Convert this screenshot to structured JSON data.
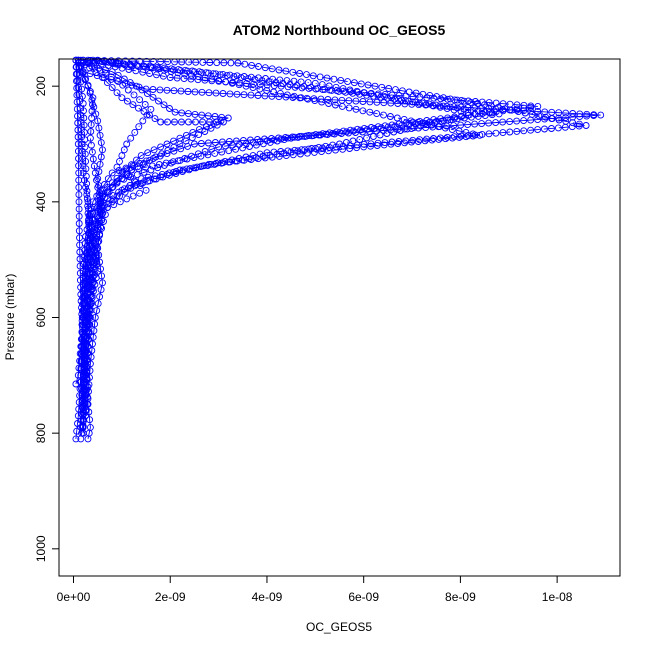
{
  "chart_data": {
    "type": "line",
    "title": "ATOM2 Northbound OC_GEOS5",
    "xlabel": "OC_GEOS5",
    "ylabel": "Pressure (mbar)",
    "xlim": [
      -3e-10,
      1.13e-08
    ],
    "ylim": [
      1047,
      153
    ],
    "y_reversed": true,
    "grid": false,
    "legend": "none",
    "x_ticks": [
      {
        "value": 0,
        "label": "0e+00"
      },
      {
        "value": 2e-09,
        "label": "2e-09"
      },
      {
        "value": 4e-09,
        "label": "4e-09"
      },
      {
        "value": 6e-09,
        "label": "6e-09"
      },
      {
        "value": 8e-09,
        "label": "8e-09"
      },
      {
        "value": 1e-08,
        "label": "1e-08"
      }
    ],
    "y_ticks": [
      {
        "value": 200,
        "label": "200"
      },
      {
        "value": 400,
        "label": "400"
      },
      {
        "value": 600,
        "label": "600"
      },
      {
        "value": 800,
        "label": "800"
      },
      {
        "value": 1000,
        "label": "1000"
      }
    ],
    "color": "#0000ff",
    "marker": "open-circle",
    "series": [
      {
        "dash": "solid",
        "points": [
          [
            1e-10,
            155
          ],
          [
            2e-10,
            175
          ],
          [
            1.5e-09,
            205
          ],
          [
            1.09e-08,
            250
          ],
          [
            2.5e-09,
            300
          ],
          [
            8e-10,
            350
          ],
          [
            4e-10,
            400
          ],
          [
            2.5e-10,
            460
          ],
          [
            2e-10,
            520
          ],
          [
            1.8e-10,
            600
          ],
          [
            1.5e-10,
            700
          ],
          [
            1e-10,
            770
          ],
          [
            5e-11,
            810
          ]
        ]
      },
      {
        "dash": "long",
        "points": [
          [
            1.5e-10,
            155
          ],
          [
            2e-09,
            185
          ],
          [
            9.6e-09,
            235
          ],
          [
            3e-09,
            305
          ],
          [
            9e-10,
            365
          ],
          [
            4e-10,
            420
          ],
          [
            3e-10,
            500
          ],
          [
            2e-10,
            600
          ],
          [
            1.5e-10,
            700
          ],
          [
            2e-10,
            780
          ],
          [
            1.5e-10,
            810
          ]
        ]
      },
      {
        "dash": "dotdash",
        "points": [
          [
            3e-10,
            155
          ],
          [
            2.6e-09,
            175
          ],
          [
            8.8e-09,
            248
          ],
          [
            4.5e-09,
            290
          ],
          [
            1.2e-09,
            345
          ],
          [
            6e-10,
            390
          ],
          [
            5e-10,
            440
          ],
          [
            4.5e-10,
            500
          ],
          [
            3e-10,
            560
          ],
          [
            2.5e-10,
            650
          ],
          [
            2e-10,
            740
          ],
          [
            2e-10,
            800
          ]
        ]
      },
      {
        "dash": "longdash",
        "points": [
          [
            2e-10,
            155
          ],
          [
            3.4e-09,
            160
          ],
          [
            8.5e-09,
            232
          ],
          [
            1.06e-08,
            268
          ],
          [
            4e-09,
            315
          ],
          [
            1.4e-09,
            360
          ],
          [
            7e-10,
            395
          ],
          [
            4e-10,
            450
          ],
          [
            3e-10,
            520
          ],
          [
            2.5e-10,
            620
          ],
          [
            2e-10,
            720
          ],
          [
            1.5e-10,
            790
          ]
        ]
      },
      {
        "dash": "dotted",
        "points": [
          [
            4e-10,
            155
          ],
          [
            1.2e-09,
            165
          ],
          [
            2.5e-09,
            175
          ],
          [
            5e-09,
            195
          ],
          [
            8.3e-09,
            248
          ],
          [
            5.5e-09,
            300
          ],
          [
            2.2e-09,
            345
          ],
          [
            1e-09,
            380
          ],
          [
            6e-10,
            420
          ],
          [
            5e-10,
            480
          ],
          [
            4e-10,
            550
          ],
          [
            3e-10,
            650
          ],
          [
            2e-10,
            760
          ]
        ]
      },
      {
        "dash": "twodash",
        "points": [
          [
            5e-10,
            155
          ],
          [
            1.6e-09,
            168
          ],
          [
            3e-09,
            190
          ],
          [
            8.4e-09,
            285
          ],
          [
            6e-09,
            305
          ],
          [
            2.8e-09,
            335
          ],
          [
            1.3e-09,
            370
          ],
          [
            6e-10,
            410
          ],
          [
            4.5e-10,
            470
          ],
          [
            3.5e-10,
            560
          ],
          [
            3e-10,
            650
          ],
          [
            2.5e-10,
            730
          ],
          [
            2e-10,
            790
          ]
        ]
      },
      {
        "dash": "solid",
        "points": [
          [
            1e-10,
            160
          ],
          [
            8e-10,
            175
          ],
          [
            1.3e-09,
            200
          ],
          [
            2.1e-09,
            245
          ],
          [
            3.2e-09,
            255
          ],
          [
            2.6e-09,
            275
          ],
          [
            1.4e-09,
            320
          ],
          [
            7e-10,
            375
          ],
          [
            3.5e-10,
            420
          ],
          [
            2.5e-10,
            500
          ],
          [
            2e-10,
            600
          ],
          [
            1.5e-10,
            690
          ]
        ]
      },
      {
        "dash": "dashed",
        "points": [
          [
            2e-10,
            160
          ],
          [
            6e-10,
            185
          ],
          [
            1e-09,
            220
          ],
          [
            1.8e-09,
            262
          ],
          [
            3.1e-09,
            262
          ],
          [
            2.2e-09,
            300
          ],
          [
            1.2e-09,
            345
          ],
          [
            6e-10,
            390
          ],
          [
            4.5e-10,
            430
          ],
          [
            4e-10,
            480
          ],
          [
            3e-10,
            560
          ],
          [
            2e-10,
            660
          ]
        ]
      },
      {
        "dash": "solid",
        "points": [
          [
            5e-11,
            155
          ],
          [
            3e-10,
            200
          ],
          [
            5e-10,
            260
          ],
          [
            6e-10,
            310
          ],
          [
            5e-10,
            360
          ],
          [
            6e-10,
            420
          ],
          [
            5e-10,
            480
          ],
          [
            6e-10,
            540
          ],
          [
            4.5e-10,
            600
          ],
          [
            3.5e-10,
            680
          ],
          [
            3e-10,
            740
          ],
          [
            2.5e-10,
            770
          ]
        ]
      },
      {
        "dash": "dashed",
        "points": [
          [
            1e-10,
            155
          ],
          [
            4e-10,
            220
          ],
          [
            3.5e-10,
            290
          ],
          [
            4.5e-10,
            350
          ],
          [
            5.5e-10,
            400
          ],
          [
            4e-10,
            460
          ],
          [
            5e-10,
            520
          ],
          [
            3e-10,
            600
          ],
          [
            2.5e-10,
            680
          ],
          [
            3e-10,
            720
          ],
          [
            2e-10,
            760
          ]
        ]
      },
      {
        "dash": "solid",
        "points": [
          [
            5e-11,
            155
          ],
          [
            1.5e-10,
            250
          ],
          [
            2e-10,
            350
          ],
          [
            3e-10,
            400
          ],
          [
            3.5e-10,
            460
          ],
          [
            2.5e-10,
            520
          ],
          [
            2e-10,
            600
          ],
          [
            1e-10,
            700
          ],
          [
            5e-11,
            715
          ]
        ]
      },
      {
        "dash": "dotted",
        "points": [
          [
            2e-10,
            155
          ],
          [
            9e-10,
            190
          ],
          [
            1.6e-09,
            240
          ],
          [
            1.1e-09,
            300
          ],
          [
            9e-10,
            340
          ],
          [
            1.5e-09,
            380
          ],
          [
            7e-10,
            410
          ],
          [
            5e-10,
            470
          ],
          [
            4e-10,
            530
          ],
          [
            3e-10,
            610
          ],
          [
            2e-10,
            700
          ],
          [
            2.5e-10,
            760
          ]
        ]
      },
      {
        "dash": "solid",
        "points": [
          [
            5e-11,
            155
          ],
          [
            1e-10,
            300
          ],
          [
            1.2e-10,
            450
          ],
          [
            1.5e-10,
            560
          ],
          [
            2e-10,
            640
          ],
          [
            2.5e-10,
            700
          ],
          [
            3e-10,
            750
          ],
          [
            3.5e-10,
            790
          ],
          [
            3e-10,
            810
          ]
        ]
      },
      {
        "dash": "dashed",
        "points": [
          [
            1e-10,
            155
          ],
          [
            2e-10,
            230
          ],
          [
            2.5e-10,
            330
          ],
          [
            3e-10,
            420
          ],
          [
            3.5e-10,
            500
          ],
          [
            3e-10,
            580
          ],
          [
            2.5e-10,
            660
          ],
          [
            2e-10,
            740
          ],
          [
            2e-10,
            800
          ]
        ]
      }
    ]
  }
}
